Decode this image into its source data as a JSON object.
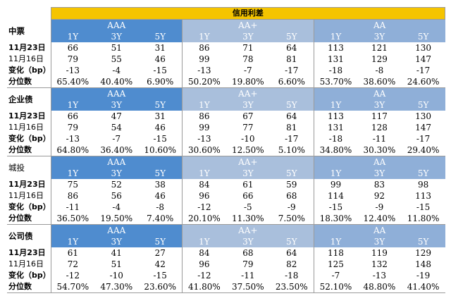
{
  "title": "信用利差",
  "groups": [
    "AAA",
    "AA+",
    "AA"
  ],
  "tenors": [
    "1Y",
    "3Y",
    "5Y"
  ],
  "sections": [
    {
      "name": "中票",
      "name_bold": true,
      "rows": [
        {
          "label": "11月23日",
          "values": [
            "66",
            "51",
            "31",
            "86",
            "71",
            "64",
            "113",
            "121",
            "130"
          ]
        },
        {
          "label": "11月16日",
          "values": [
            "79",
            "55",
            "46",
            "99",
            "78",
            "81",
            "131",
            "129",
            "147"
          ]
        },
        {
          "label": "变化（bp）",
          "values": [
            "-13",
            "-4",
            "-15",
            "-13",
            "-7",
            "-17",
            "-18",
            "-8",
            "-17"
          ]
        },
        {
          "label": "分位数",
          "values": [
            "65.40%",
            "40.40%",
            "6.90%",
            "50.20%",
            "19.80%",
            "6.60%",
            "53.70%",
            "38.60%",
            "24.60%"
          ]
        }
      ]
    },
    {
      "name": "企业债",
      "name_bold": true,
      "rows": [
        {
          "label": "11月23日",
          "values": [
            "66",
            "47",
            "31",
            "86",
            "67",
            "64",
            "113",
            "117",
            "130"
          ]
        },
        {
          "label": "11月16日",
          "values": [
            "79",
            "54",
            "46",
            "99",
            "77",
            "81",
            "131",
            "128",
            "147"
          ]
        },
        {
          "label": "变化（bp）",
          "values": [
            "-13",
            "-7",
            "-15",
            "-13",
            "-10",
            "-17",
            "-18",
            "-11",
            "-17"
          ]
        },
        {
          "label": "分位数",
          "values": [
            "64.80%",
            "36.40%",
            "10.60%",
            "30.60%",
            "12.50%",
            "5.10%",
            "34.80%",
            "30.30%",
            "29.40%"
          ]
        }
      ]
    },
    {
      "name": "城投",
      "name_bold": false,
      "rows": [
        {
          "label": "11月23日",
          "values": [
            "75",
            "52",
            "38",
            "84",
            "61",
            "59",
            "99",
            "83",
            "98"
          ]
        },
        {
          "label": "11月16日",
          "values": [
            "86",
            "56",
            "46",
            "96",
            "66",
            "68",
            "114",
            "92",
            "113"
          ]
        },
        {
          "label": "变化（bp）",
          "values": [
            "-11",
            "-4",
            "-8",
            "-12",
            "-5",
            "-9",
            "-15",
            "-9",
            "-15"
          ]
        },
        {
          "label": "分位数",
          "values": [
            "36.50%",
            "19.50%",
            "7.40%",
            "20.10%",
            "11.30%",
            "7.50%",
            "18.30%",
            "12.40%",
            "11.80%"
          ]
        }
      ]
    },
    {
      "name": "公司债",
      "name_bold": true,
      "rows": [
        {
          "label": "11月23日",
          "values": [
            "61",
            "41",
            "27",
            "84",
            "68",
            "64",
            "118",
            "119",
            "129"
          ]
        },
        {
          "label": "11月16日",
          "values": [
            "72",
            "51",
            "42",
            "96",
            "79",
            "82",
            "125",
            "132",
            "148"
          ]
        },
        {
          "label": "变化（bp）",
          "values": [
            "-12",
            "-10",
            "-15",
            "-12",
            "-11",
            "-18",
            "-7",
            "-13",
            "-19"
          ]
        },
        {
          "label": "分位数",
          "values": [
            "54.70%",
            "47.30%",
            "23.60%",
            "41.80%",
            "37.50%",
            "23.50%",
            "52.10%",
            "48.80%",
            "41.40%"
          ]
        }
      ]
    }
  ]
}
